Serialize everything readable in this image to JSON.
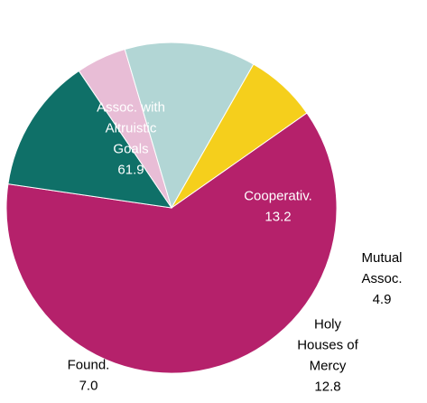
{
  "chart_data": {
    "type": "pie",
    "slices": [
      {
        "name_lines": [
          "Assoc. with",
          "Altruistic",
          "Goals"
        ],
        "value": 61.9,
        "value_label": "61.9",
        "color": "#b5216b"
      },
      {
        "name_lines": [
          "Cooperativ."
        ],
        "value": 13.2,
        "value_label": "13.2",
        "color": "#0f7068"
      },
      {
        "name_lines": [
          "Mutual",
          "Assoc."
        ],
        "value": 4.9,
        "value_label": "4.9",
        "color": "#e8bdd6"
      },
      {
        "name_lines": [
          "Holy",
          "Houses of",
          "Mercy"
        ],
        "value": 12.8,
        "value_label": "12.8",
        "color": "#b2d6d5"
      },
      {
        "name_lines": [
          "Found."
        ],
        "value": 7.0,
        "value_label": "7.0",
        "color": "#f5cf1c"
      }
    ],
    "start_angle_deg": -35,
    "direction": "clockwise",
    "label_color_inside": "#ffffff",
    "label_color_outside": "#000000"
  }
}
